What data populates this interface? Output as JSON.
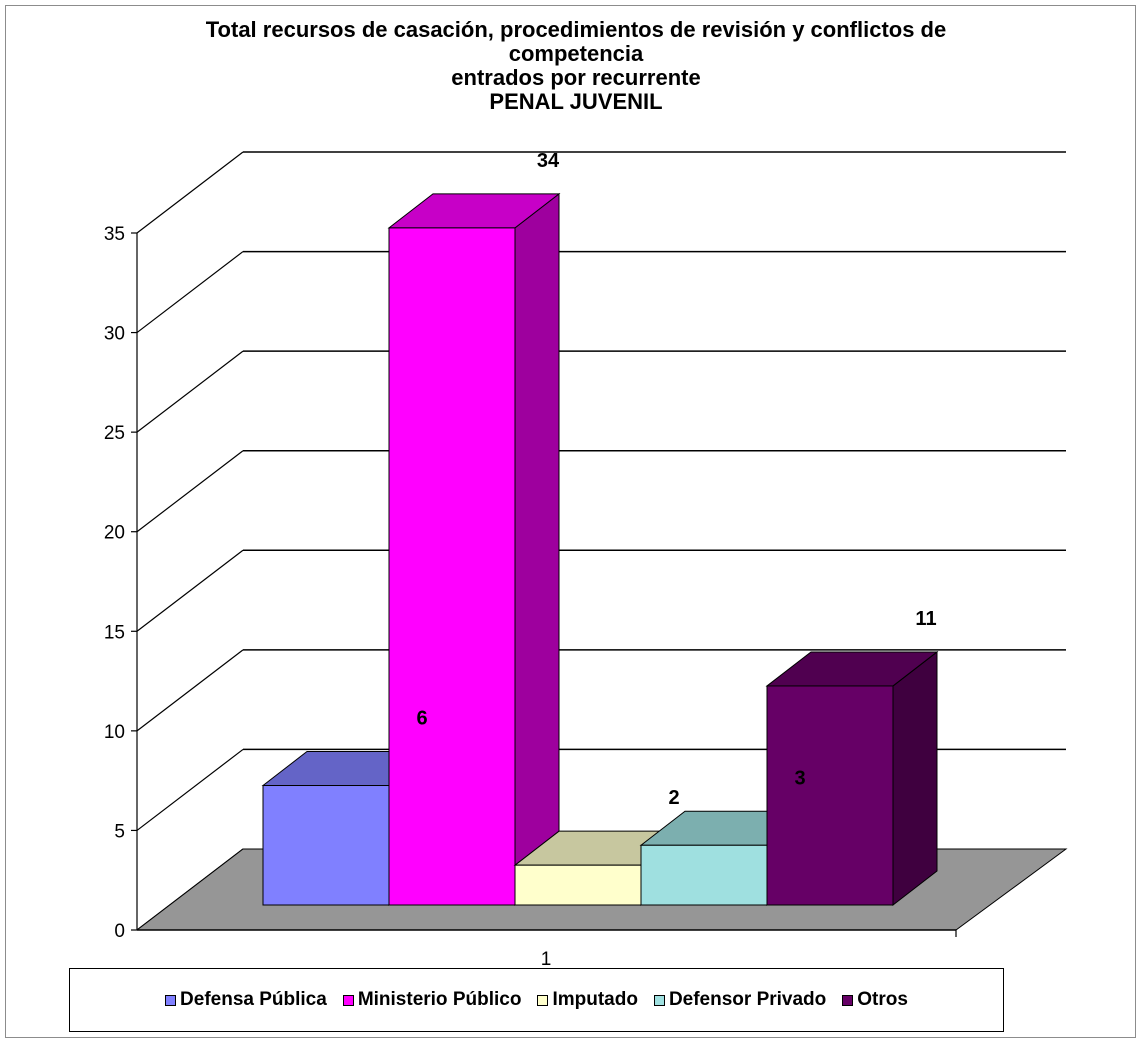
{
  "chart_data": {
    "type": "bar",
    "title_lines": [
      "Total recursos de casación, procedimientos  de revisión y conflictos de",
      "competencia",
      "entrados por recurrente",
      "PENAL JUVENIL"
    ],
    "categories": [
      "1"
    ],
    "series": [
      {
        "name": "Defensa Pública",
        "value": 6,
        "color": "#8080ff"
      },
      {
        "name": "Ministerio Público",
        "value": 34,
        "color": "#ff00ff"
      },
      {
        "name": "Imputado",
        "value": 2,
        "color": "#ffffcc"
      },
      {
        "name": "Defensor Privado",
        "value": 3,
        "color": "#9fe0e0"
      },
      {
        "name": "Otros",
        "value": 11,
        "color": "#660066"
      }
    ],
    "y_ticks": [
      "0",
      "5",
      "10",
      "15",
      "20",
      "25",
      "30",
      "35"
    ],
    "ylim": [
      0,
      35
    ],
    "grid": true,
    "legend_position": "bottom",
    "floor_color": "#969696"
  }
}
